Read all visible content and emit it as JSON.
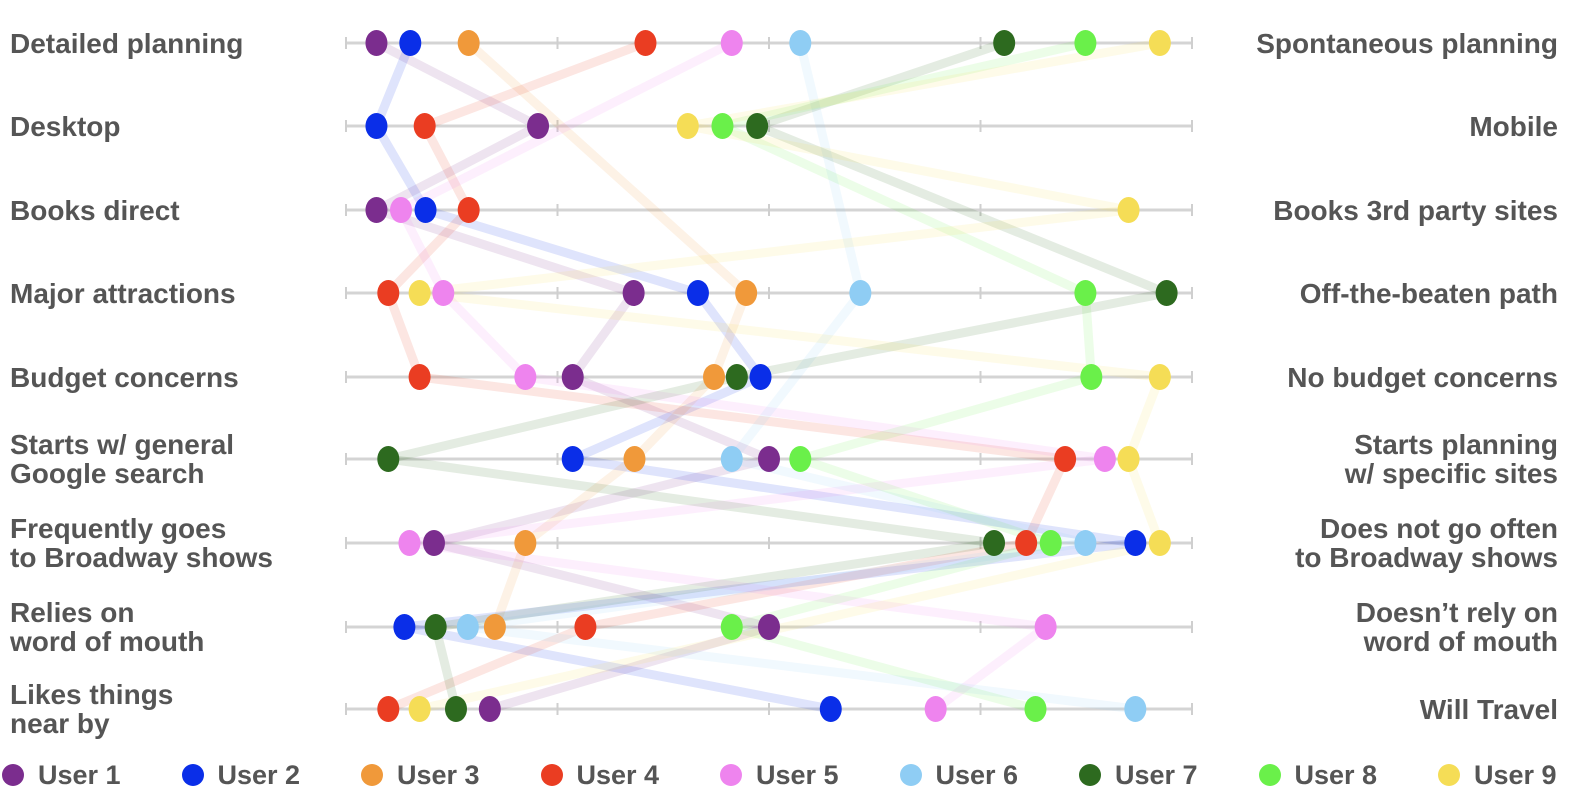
{
  "chart_data": {
    "type": "scatter",
    "xlim": [
      0,
      10
    ],
    "grid": false,
    "legend_position": "bottom",
    "dimensions": [
      {
        "left": "Detailed planning",
        "right": "Spontaneous planning"
      },
      {
        "left": "Desktop",
        "right": "Mobile"
      },
      {
        "left": "Books direct",
        "right": "Books 3rd party sites"
      },
      {
        "left": "Major attractions",
        "right": "Off-the-beaten path"
      },
      {
        "left": "Budget concerns",
        "right": "No budget concerns"
      },
      {
        "left": "Starts w/ general\nGoogle search",
        "right": "Starts planning\nw/ specific sites"
      },
      {
        "left": "Frequently goes\nto Broadway shows",
        "right": "Does not go often\nto Broadway shows"
      },
      {
        "left": "Relies on\nword of mouth",
        "right": "Doesn’t rely on\nword of mouth"
      },
      {
        "left": "Likes things\nnear by",
        "right": "Will Travel"
      }
    ],
    "series": [
      {
        "name": "User 1",
        "color": "#7b2d8e",
        "values": [
          0.36,
          2.27,
          0.36,
          3.4,
          2.68,
          5.0,
          1.04,
          5.0,
          1.7
        ]
      },
      {
        "name": "User 2",
        "color": "#0a2ee8",
        "values": [
          0.76,
          0.36,
          0.94,
          4.16,
          4.9,
          2.68,
          9.33,
          0.69,
          5.73
        ]
      },
      {
        "name": "User 3",
        "color": "#f0993a",
        "values": [
          1.45,
          null,
          null,
          4.73,
          4.35,
          3.41,
          2.12,
          1.76,
          null
        ]
      },
      {
        "name": "User 4",
        "color": "#ea3d22",
        "values": [
          3.54,
          0.93,
          1.45,
          0.5,
          0.87,
          8.5,
          8.04,
          2.83,
          0.5
        ]
      },
      {
        "name": "User 5",
        "color": "#ee84ee",
        "values": [
          4.56,
          null,
          0.65,
          1.15,
          2.12,
          8.97,
          0.75,
          8.27,
          6.97
        ]
      },
      {
        "name": "User 6",
        "color": "#8fcdf4",
        "values": [
          5.37,
          null,
          null,
          6.08,
          null,
          4.56,
          8.74,
          1.44,
          9.33
        ]
      },
      {
        "name": "User 7",
        "color": "#2d6a1f",
        "values": [
          7.78,
          4.86,
          null,
          9.7,
          4.62,
          0.5,
          7.66,
          1.06,
          1.3
        ]
      },
      {
        "name": "User 8",
        "color": "#6af04a",
        "values": [
          8.74,
          4.45,
          null,
          8.74,
          8.81,
          5.37,
          8.33,
          4.56,
          8.15
        ]
      },
      {
        "name": "User 9",
        "color": "#f5dd56",
        "values": [
          9.62,
          4.04,
          9.25,
          0.87,
          9.62,
          9.25,
          9.62,
          null,
          0.87
        ]
      }
    ]
  }
}
